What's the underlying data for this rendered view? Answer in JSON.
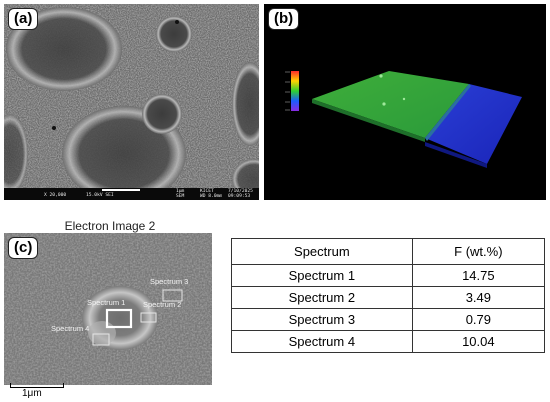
{
  "panel_a": {
    "tag": "(a)",
    "info": {
      "mag": "X 20,000",
      "voltage": "15.0kV SEI",
      "scale": "1μm",
      "mode": "SEM",
      "wd": "WD 8.0mm",
      "org": "KICET",
      "date": "7/10/2025",
      "time": "09:09:53"
    }
  },
  "panel_b": {
    "tag": "(b)",
    "colors": {
      "high_region": "#2fae3a",
      "low_region": "#1c2fcf",
      "background": "#000000"
    }
  },
  "panel_c": {
    "tag": "(c)",
    "title": "Electron Image 2",
    "scale": "1μm",
    "spectrum_labels": [
      "Spectrum 1",
      "Spectrum 2",
      "Spectrum 3",
      "Spectrum 4"
    ]
  },
  "table": {
    "headers": [
      "Spectrum",
      "F (wt.%)"
    ],
    "rows": [
      [
        "Spectrum 1",
        "14.75"
      ],
      [
        "Spectrum 2",
        "3.49"
      ],
      [
        "Spectrum 3",
        "0.79"
      ],
      [
        "Spectrum 4",
        "10.04"
      ]
    ]
  }
}
